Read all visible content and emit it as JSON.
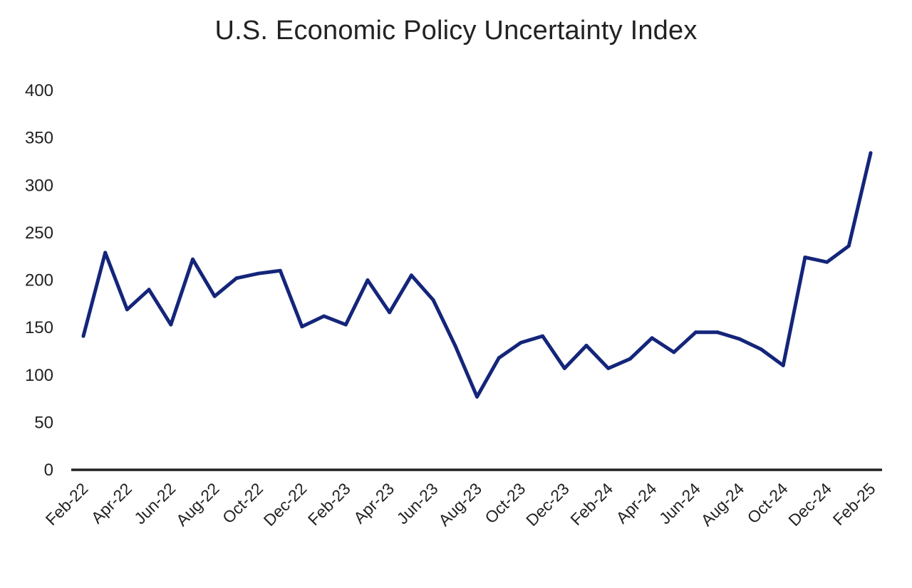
{
  "chart_data": {
    "type": "line",
    "title": "U.S. Economic Policy Uncertainty Index",
    "xlabel": "",
    "ylabel": "",
    "ylim": [
      0,
      400
    ],
    "yticks": [
      0,
      50,
      100,
      150,
      200,
      250,
      300,
      350,
      400
    ],
    "grid": false,
    "legend": "none",
    "colors": {
      "line": "#14257a",
      "axis": "#222222"
    },
    "x_tick_labels": [
      "Feb-22",
      "Apr-22",
      "Jun-22",
      "Aug-22",
      "Oct-22",
      "Dec-22",
      "Feb-23",
      "Apr-23",
      "Jun-23",
      "Aug-23",
      "Oct-23",
      "Dec-23",
      "Feb-24",
      "Apr-24",
      "Jun-24",
      "Aug-24",
      "Oct-24",
      "Dec-24",
      "Feb-25"
    ],
    "categories": [
      "Feb-22",
      "Mar-22",
      "Apr-22",
      "May-22",
      "Jun-22",
      "Jul-22",
      "Aug-22",
      "Sep-22",
      "Oct-22",
      "Nov-22",
      "Dec-22",
      "Jan-23",
      "Feb-23",
      "Mar-23",
      "Apr-23",
      "May-23",
      "Jun-23",
      "Jul-23",
      "Aug-23",
      "Sep-23",
      "Oct-23",
      "Nov-23",
      "Dec-23",
      "Jan-24",
      "Feb-24",
      "Mar-24",
      "Apr-24",
      "May-24",
      "Jun-24",
      "Jul-24",
      "Aug-24",
      "Sep-24",
      "Oct-24",
      "Nov-24",
      "Dec-24",
      "Jan-25",
      "Feb-25"
    ],
    "series": [
      {
        "values": [
          141,
          229,
          169,
          190,
          153,
          222,
          183,
          202,
          207,
          210,
          151,
          162,
          153,
          200,
          166,
          205,
          179,
          131,
          77,
          118,
          134,
          141,
          107,
          131,
          107,
          117,
          139,
          124,
          145,
          145,
          138,
          127,
          110,
          224,
          219,
          236,
          334
        ]
      }
    ]
  }
}
